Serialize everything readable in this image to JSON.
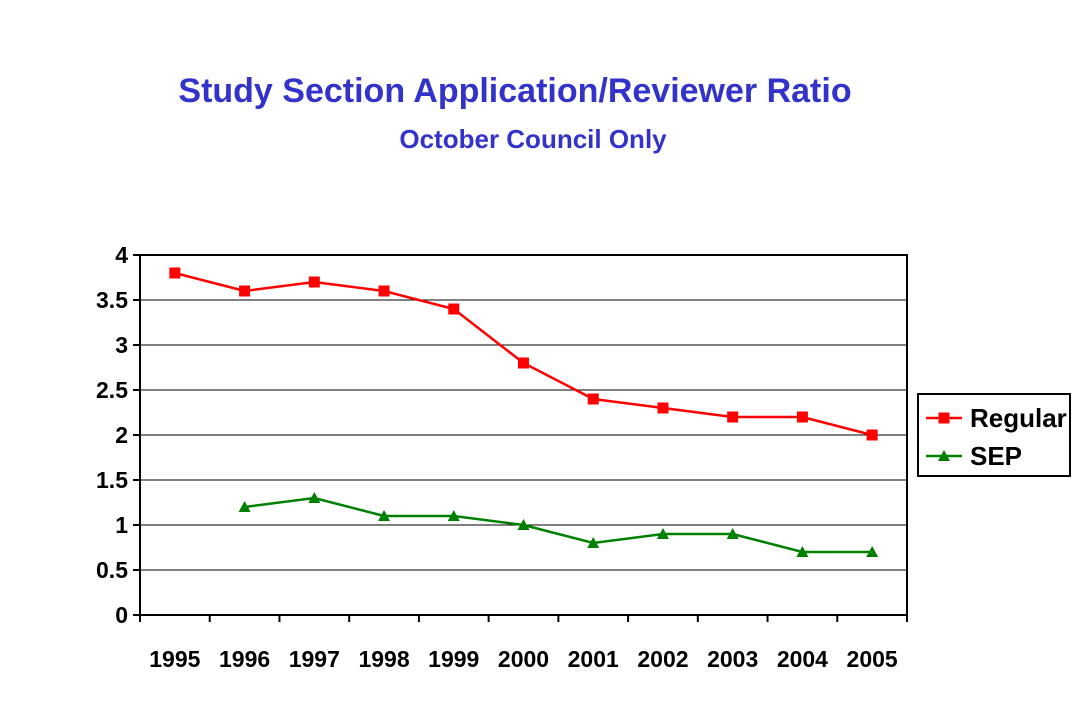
{
  "chart_data": {
    "type": "line",
    "title": "Study Section Application/Reviewer Ratio",
    "subtitle": "October Council Only",
    "categories": [
      "1995",
      "1996",
      "1997",
      "1998",
      "1999",
      "2000",
      "2001",
      "2002",
      "2003",
      "2004",
      "2005"
    ],
    "series": [
      {
        "name": "Regular",
        "color": "#ff0000",
        "marker": "square",
        "values": [
          3.8,
          3.6,
          3.7,
          3.6,
          3.4,
          2.8,
          2.4,
          2.3,
          2.2,
          2.2,
          2.0
        ]
      },
      {
        "name": "SEP",
        "color": "#008000",
        "marker": "triangle",
        "values": [
          null,
          1.2,
          1.3,
          1.1,
          1.1,
          1.0,
          0.8,
          0.9,
          0.9,
          0.7,
          0.7
        ]
      }
    ],
    "ylim": [
      0,
      4
    ],
    "yticks": [
      "0",
      "0.5",
      "1",
      "1.5",
      "2",
      "2.5",
      "3",
      "3.5",
      "4"
    ],
    "grid": true,
    "legend_position": "right"
  }
}
